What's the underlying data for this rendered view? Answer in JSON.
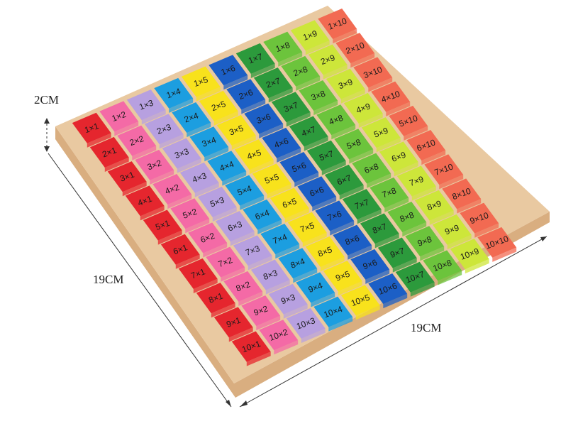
{
  "dimensions": {
    "height_label": "2CM",
    "left_length_label": "19CM",
    "right_length_label": "19CM"
  },
  "board": {
    "wood_color": "#e9c9a1",
    "wood_edge_color": "#d9ae80",
    "column_colors": [
      "#e5262e",
      "#f46aa6",
      "#b7a0e0",
      "#1c9ee0",
      "#f8e21c",
      "#1c5fc6",
      "#2c9a3c",
      "#6cc43c",
      "#cde63a",
      "#f26a52"
    ],
    "tile_labels": [
      [
        "1×1",
        "1×2",
        "1×3",
        "1×4",
        "1×5",
        "1×6",
        "1×7",
        "1×8",
        "1×9",
        "1×10"
      ],
      [
        "2×1",
        "2×2",
        "2×3",
        "2×4",
        "2×5",
        "2×6",
        "2×7",
        "2×8",
        "2×9",
        "2×10"
      ],
      [
        "3×1",
        "3×2",
        "3×3",
        "3×4",
        "3×5",
        "3×6",
        "3×7",
        "3×8",
        "3×9",
        "3×10"
      ],
      [
        "4×1",
        "4×2",
        "4×3",
        "4×4",
        "4×5",
        "4×6",
        "4×7",
        "4×8",
        "4×9",
        "4×10"
      ],
      [
        "5×1",
        "5×2",
        "5×3",
        "5×4",
        "5×5",
        "5×6",
        "5×7",
        "5×8",
        "5×9",
        "5×10"
      ],
      [
        "6×1",
        "6×2",
        "6×3",
        "6×4",
        "6×5",
        "6×6",
        "6×7",
        "6×8",
        "6×9",
        "6×10"
      ],
      [
        "7×1",
        "7×2",
        "7×3",
        "7×4",
        "7×5",
        "7×6",
        "7×7",
        "7×8",
        "7×9",
        "7×10"
      ],
      [
        "8×1",
        "8×2",
        "8×3",
        "8×4",
        "8×5",
        "8×6",
        "8×7",
        "8×8",
        "8×9",
        "8×10"
      ],
      [
        "9×1",
        "9×2",
        "9×3",
        "9×4",
        "9×5",
        "9×6",
        "9×7",
        "9×8",
        "9×9",
        "9×10"
      ],
      [
        "10×1",
        "10×2",
        "10×3",
        "10×4",
        "10×5",
        "10×6",
        "10×7",
        "10×8",
        "10×9",
        "10×10"
      ]
    ]
  }
}
